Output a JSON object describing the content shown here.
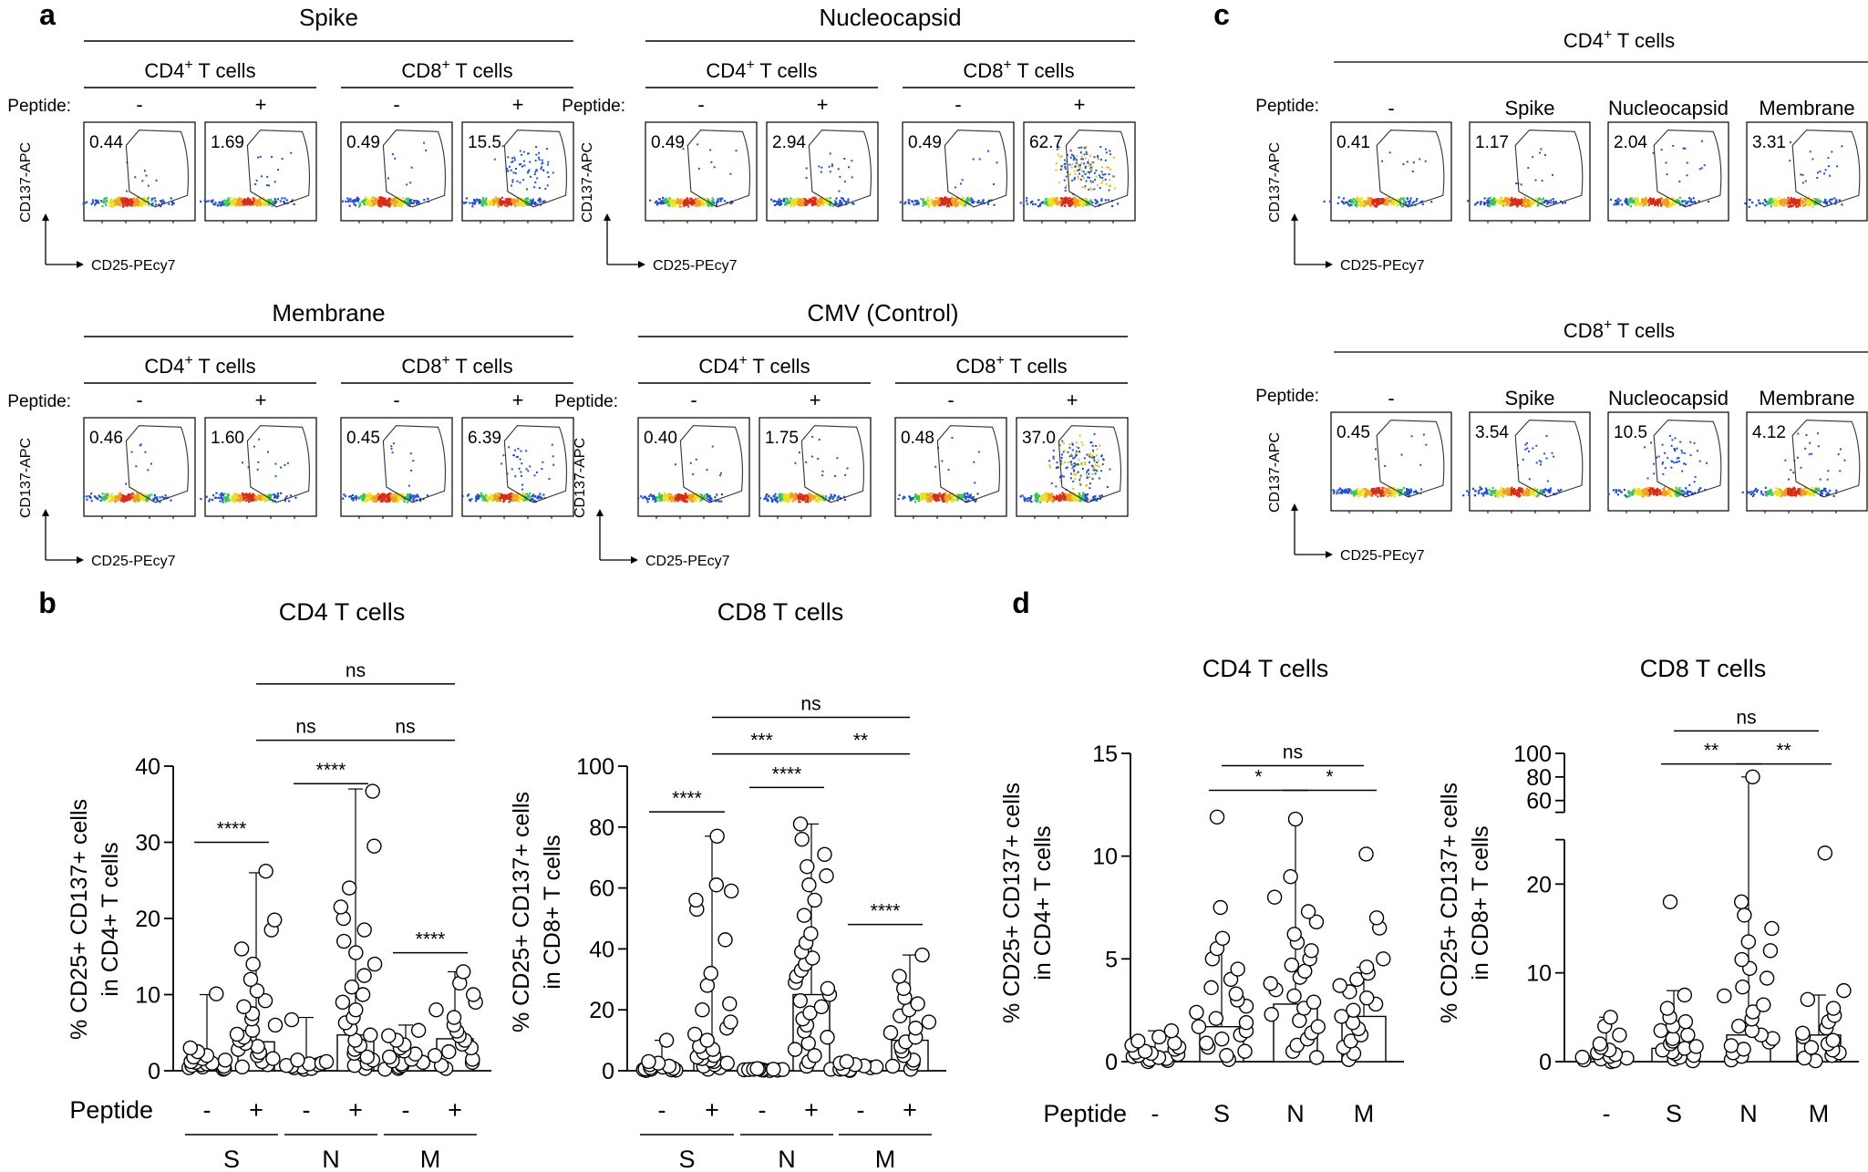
{
  "panel_letters": [
    "a",
    "b",
    "c",
    "d"
  ],
  "flow_a": {
    "antigens": [
      {
        "name": "Spike",
        "cd4": "CD4",
        "cd8": "CD8",
        "vals": [
          "0.44",
          "1.69",
          "0.49",
          "15.5"
        ]
      },
      {
        "name": "Nucleocapsid",
        "cd4": "CD4",
        "cd8": "CD8",
        "vals": [
          "0.49",
          "2.94",
          "0.49",
          "62.7"
        ]
      },
      {
        "name": "Membrane",
        "cd4": "CD4",
        "cd8": "CD8",
        "vals": [
          "0.46",
          "1.60",
          "0.45",
          "6.39"
        ]
      },
      {
        "name": "CMV (Control)",
        "cd4": "CD4",
        "cd8": "CD8",
        "vals": [
          "0.40",
          "1.75",
          "0.48",
          "37.0"
        ]
      }
    ],
    "tcell_suffix": " T cells",
    "sup": "+",
    "peptide_label": "Peptide:",
    "minus": "-",
    "plus": "+",
    "y_axis": "CD137-APC",
    "x_axis": "CD25-PEcy7"
  },
  "flow_c": {
    "groups": [
      {
        "title": "CD4",
        "vals": [
          "0.41",
          "1.17",
          "2.04",
          "3.31"
        ]
      },
      {
        "title": "CD8",
        "vals": [
          "0.45",
          "3.54",
          "10.5",
          "4.12"
        ]
      }
    ],
    "tcell_suffix": " T cells",
    "sup": "+",
    "peptide_label": "Peptide:",
    "conditions": [
      "-",
      "Spike",
      "Nucleocapsid",
      "Membrane"
    ],
    "y_axis": "CD137-APC",
    "x_axis": "CD25-PEcy7"
  },
  "chart_data": [
    {
      "type": "bar",
      "panel": "b",
      "title": "CD4+ T cells",
      "ylabel": "% CD25+ CD137+ cells in CD4+ T cells",
      "ylim": [
        0,
        40
      ],
      "yticks": [
        0,
        10,
        20,
        30,
        40
      ],
      "categories": [
        "S -",
        "S +",
        "N -",
        "N +",
        "M -",
        "M +"
      ],
      "medians": [
        0.9,
        3.8,
        0.9,
        4.7,
        1.3,
        4.2
      ],
      "whisker_high": [
        10,
        26,
        7,
        37,
        6,
        13
      ],
      "points": [
        [
          0.2,
          0.3,
          0.4,
          0.5,
          0.6,
          0.7,
          0.8,
          0.9,
          1.0,
          1.1,
          1.2,
          1.4,
          1.6,
          1.8,
          2.0,
          2.5,
          3.0,
          10.1
        ],
        [
          0.5,
          0.8,
          1.2,
          1.6,
          2.0,
          2.4,
          2.8,
          3.2,
          3.6,
          4.0,
          4.4,
          4.8,
          5.3,
          6.0,
          6.8,
          7.5,
          8.4,
          9.2,
          10.5,
          12.0,
          14.0,
          16.0,
          18.5,
          19.8,
          26.2
        ],
        [
          0.2,
          0.3,
          0.4,
          0.5,
          0.6,
          0.7,
          0.8,
          0.9,
          1.0,
          1.2,
          1.4,
          6.7
        ],
        [
          0.3,
          0.7,
          1.0,
          1.4,
          1.8,
          2.3,
          2.8,
          3.3,
          4.0,
          4.7,
          5.5,
          6.3,
          7.0,
          8.0,
          9.0,
          10.0,
          11.0,
          12.5,
          14.0,
          15.5,
          17.0,
          18.5,
          20.0,
          21.5,
          24.0,
          29.5,
          36.7
        ],
        [
          0.2,
          0.3,
          0.5,
          0.7,
          0.9,
          1.1,
          1.3,
          1.5,
          1.8,
          2.2,
          2.6,
          3.0,
          3.4,
          4.0,
          4.6,
          5.3
        ],
        [
          0.3,
          0.7,
          1.1,
          1.5,
          2.0,
          2.5,
          3.0,
          3.5,
          4.0,
          4.6,
          5.2,
          6.0,
          7.0,
          8.0,
          9.0,
          10.0,
          11.5,
          13.0
        ]
      ],
      "sig": [
        {
          "from": 0,
          "to": 1,
          "label": "****",
          "level": 30
        },
        {
          "from": 2,
          "to": 3,
          "label": "****",
          "level": 37.7
        },
        {
          "from": 4,
          "to": 5,
          "label": "****",
          "level": 15.5
        },
        {
          "from": 1,
          "to": 3,
          "label": "ns",
          "level": 43.4
        },
        {
          "from": 3,
          "to": 5,
          "label": "ns",
          "level": 43.4
        },
        {
          "from": 1,
          "to": 5,
          "label": "ns",
          "level": 50.8
        }
      ],
      "group_labels": [
        "S",
        "N",
        "M"
      ],
      "peptide_label": "Peptide",
      "minus": "-",
      "plus": "+"
    },
    {
      "type": "bar",
      "panel": "b",
      "title": "CD8+ T cells",
      "ylabel": "% CD25+ CD137+ cells in CD8+ T cells",
      "ylim": [
        0,
        100
      ],
      "yticks": [
        0,
        20,
        40,
        60,
        80,
        100
      ],
      "categories": [
        "S -",
        "S +",
        "N -",
        "N +",
        "M -",
        "M +"
      ],
      "medians": [
        0.5,
        4.5,
        0.3,
        25,
        0.5,
        10
      ],
      "whisker_high": [
        10,
        77,
        1,
        81,
        3,
        38
      ],
      "points": [
        [
          0.1,
          0.2,
          0.3,
          0.4,
          0.5,
          0.6,
          0.8,
          1.0,
          1.2,
          1.5,
          2.0,
          2.5,
          3.0,
          10.0
        ],
        [
          0.5,
          1.0,
          1.5,
          2.0,
          2.5,
          3.0,
          3.5,
          4.0,
          4.5,
          5.0,
          6.0,
          7.0,
          8.0,
          10.0,
          12.0,
          14.0,
          16.0,
          20.0,
          22.0,
          28.0,
          32.0,
          43.0,
          53.0,
          56.0,
          59.0,
          61.0,
          77.0
        ],
        [
          0.1,
          0.2,
          0.2,
          0.3,
          0.3,
          0.4,
          0.4,
          0.5,
          0.5,
          0.6,
          0.7
        ],
        [
          0.5,
          1.5,
          3.0,
          5.0,
          7.0,
          9.0,
          11.0,
          13.0,
          15.0,
          17.0,
          19.0,
          21.0,
          23.0,
          25.0,
          27.0,
          29.0,
          31.0,
          33.0,
          35.0,
          37.0,
          39.0,
          42.0,
          45.0,
          51.0,
          56.0,
          61.0,
          64.0,
          67.0,
          71.0,
          76.0,
          81.0
        ],
        [
          0.1,
          0.3,
          0.5,
          0.7,
          1.0,
          1.3,
          1.6,
          2.0,
          2.5,
          3.0
        ],
        [
          0.5,
          1.5,
          2.5,
          3.5,
          5.0,
          6.5,
          8.0,
          9.5,
          11.0,
          12.5,
          14.0,
          16.0,
          18.0,
          20.0,
          22.0,
          24.0,
          27.0,
          31.0,
          38.0
        ]
      ],
      "sig": [
        {
          "from": 0,
          "to": 1,
          "label": "****",
          "level": 85
        },
        {
          "from": 2,
          "to": 3,
          "label": "****",
          "level": 93
        },
        {
          "from": 4,
          "to": 5,
          "label": "****",
          "level": 48
        },
        {
          "from": 1,
          "to": 3,
          "label": "***",
          "level": 104
        },
        {
          "from": 3,
          "to": 5,
          "label": "**",
          "level": 104
        },
        {
          "from": 1,
          "to": 5,
          "label": "ns",
          "level": 116
        }
      ],
      "group_labels": [
        "S",
        "N",
        "M"
      ],
      "peptide_label": "",
      "minus": "-",
      "plus": "+"
    },
    {
      "type": "bar",
      "panel": "d",
      "title": "CD4+ T cells",
      "ylabel": "% CD25+ CD137+ cells in CD4+ T cells",
      "ylim": [
        0,
        15
      ],
      "yticks": [
        0,
        5,
        10,
        15
      ],
      "categories": [
        "-",
        "S",
        "N",
        "M"
      ],
      "medians": [
        0.3,
        1.7,
        2.8,
        2.2
      ],
      "whisker_high": [
        1.5,
        5.8,
        11.8,
        4.6
      ],
      "points": [
        [
          0.0,
          0.05,
          0.1,
          0.15,
          0.2,
          0.25,
          0.3,
          0.35,
          0.4,
          0.45,
          0.5,
          0.6,
          0.7,
          0.8,
          0.9,
          1.0,
          1.2,
          1.5
        ],
        [
          0.1,
          0.3,
          0.5,
          0.7,
          0.9,
          1.1,
          1.3,
          1.5,
          1.7,
          1.9,
          2.1,
          2.4,
          2.7,
          3.0,
          3.3,
          3.6,
          4.0,
          4.5,
          5.0,
          5.5,
          6.0,
          7.5,
          11.9
        ],
        [
          0.2,
          0.5,
          0.8,
          1.1,
          1.4,
          1.7,
          2.0,
          2.3,
          2.6,
          2.9,
          3.2,
          3.5,
          3.8,
          4.1,
          4.4,
          4.7,
          5.0,
          5.4,
          5.8,
          6.2,
          6.8,
          7.3,
          8.0,
          9.0,
          11.8
        ],
        [
          0.1,
          0.4,
          0.7,
          1.0,
          1.3,
          1.6,
          1.9,
          2.2,
          2.5,
          2.8,
          3.1,
          3.4,
          3.7,
          4.0,
          4.3,
          4.6,
          5.0,
          6.5,
          7.0,
          10.1
        ]
      ],
      "sig": [
        {
          "from": 1,
          "to": 2,
          "label": "*",
          "level": 13.2
        },
        {
          "from": 2,
          "to": 3,
          "label": "*",
          "level": 13.2
        },
        {
          "from": 1,
          "to": 3,
          "label": "ns",
          "level": 14.4
        }
      ],
      "group_labels": [
        "-",
        "S",
        "N",
        "M"
      ],
      "peptide_label": "Peptide"
    },
    {
      "type": "bar",
      "panel": "d",
      "title": "CD8+ T cells",
      "ylabel": "% CD25+ CD137+ cells in CD8+ T cells",
      "ylim": [
        0,
        100
      ],
      "axis_break": [
        25,
        50
      ],
      "yticks": [
        0,
        10,
        20,
        60,
        80,
        100
      ],
      "categories": [
        "-",
        "S",
        "N",
        "M"
      ],
      "medians": [
        0.3,
        1.5,
        3.0,
        3.0
      ],
      "whisker_high": [
        5,
        8,
        80,
        7.5
      ],
      "points": [
        [
          0.0,
          0.1,
          0.2,
          0.3,
          0.4,
          0.5,
          0.6,
          0.8,
          1.0,
          1.3,
          1.6,
          2.0,
          3.0,
          4.0,
          5.0
        ],
        [
          0.1,
          0.3,
          0.5,
          0.7,
          0.9,
          1.1,
          1.3,
          1.5,
          1.7,
          2.0,
          2.3,
          2.6,
          3.0,
          3.5,
          4.0,
          4.5,
          5.0,
          6.0,
          7.5,
          18.0
        ],
        [
          0.2,
          0.6,
          1.0,
          1.4,
          1.8,
          2.2,
          2.6,
          3.0,
          3.5,
          4.0,
          4.8,
          5.6,
          6.4,
          7.4,
          8.4,
          9.4,
          10.5,
          11.5,
          12.5,
          13.5,
          15.0,
          16.5,
          18.0,
          80.0
        ],
        [
          0.1,
          0.4,
          0.7,
          1.0,
          1.3,
          1.6,
          2.0,
          2.4,
          2.8,
          3.2,
          3.8,
          4.5,
          5.2,
          6.0,
          7.0,
          8.0,
          23.5
        ]
      ],
      "sig": [
        {
          "from": 1,
          "to": 2,
          "label": "**",
          "level": 91
        },
        {
          "from": 2,
          "to": 3,
          "label": "**",
          "level": 91
        },
        {
          "from": 1,
          "to": 3,
          "label": "ns",
          "level": 119
        }
      ],
      "group_labels": [
        "-",
        "S",
        "N",
        "M"
      ],
      "peptide_label": ""
    }
  ]
}
